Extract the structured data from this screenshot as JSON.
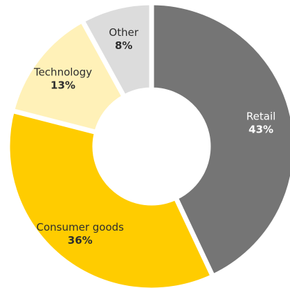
{
  "chart_data": {
    "type": "pie",
    "donut": true,
    "title": "",
    "legend": "none",
    "categories": [
      "Retail",
      "Consumer goods",
      "Technology",
      "Other"
    ],
    "values": [
      43,
      36,
      13,
      8
    ],
    "labels": [
      "43%",
      "36%",
      "13%",
      "8%"
    ],
    "colors": [
      "#757575",
      "#ffcc00",
      "#fff1b8",
      "#dcdcdc"
    ]
  }
}
